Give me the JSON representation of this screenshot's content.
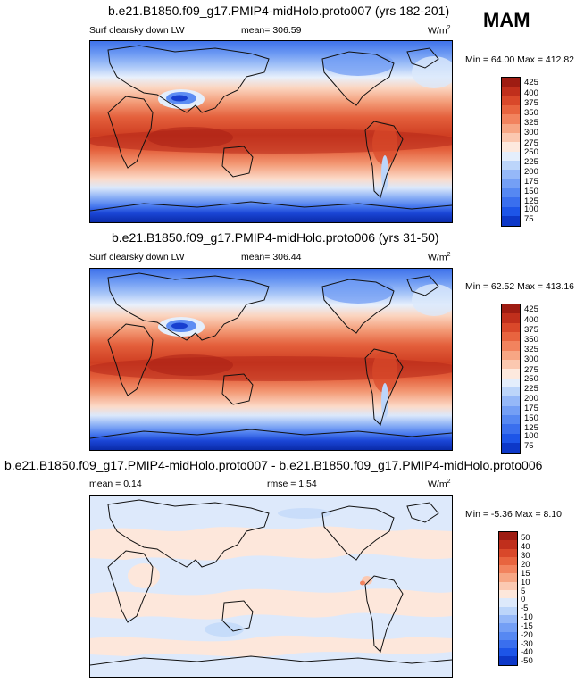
{
  "season": "MAM",
  "colors": {
    "abs": [
      "#08208e",
      "#0d38c8",
      "#1d55e8",
      "#3a6fee",
      "#5688f2",
      "#749ff5",
      "#95b8f8",
      "#bcd5fa",
      "#e4eefc",
      "#fde9de",
      "#fbc8b0",
      "#f7a684",
      "#f2835e",
      "#e8643f",
      "#d9482a",
      "#c02f1c",
      "#9e1c12"
    ],
    "diff": [
      "#08208e",
      "#0d38c8",
      "#1d55e8",
      "#3a6fee",
      "#5688f2",
      "#749ff5",
      "#95b8f8",
      "#bcd5fa",
      "#dde9fb",
      "#fde7db",
      "#fbc9b2",
      "#f7a684",
      "#f2835e",
      "#e8643f",
      "#d9482a",
      "#c02f1c",
      "#9e1c12"
    ]
  },
  "chart_data": [
    {
      "type": "heatmap",
      "title": "b.e21.B1850.f09_g17.PMIP4-midHolo.proto007 (yrs 182-201)",
      "left_label": "Surf clearsky down LW",
      "mean_label": "mean= 306.59",
      "units": "W/m",
      "units_exp": "2",
      "minmax": "Min = 64.00 Max = 412.82",
      "colorbar_levels": [
        "75",
        "100",
        "125",
        "150",
        "175",
        "200",
        "225",
        "250",
        "275",
        "300",
        "325",
        "350",
        "375",
        "400",
        "425"
      ]
    },
    {
      "type": "heatmap",
      "title": "b.e21.B1850.f09_g17.PMIP4-midHolo.proto006 (yrs 31-50)",
      "left_label": "Surf clearsky down LW",
      "mean_label": "mean= 306.44",
      "units": "W/m",
      "units_exp": "2",
      "minmax": "Min = 62.52 Max = 413.16",
      "colorbar_levels": [
        "75",
        "100",
        "125",
        "150",
        "175",
        "200",
        "225",
        "250",
        "275",
        "300",
        "325",
        "350",
        "375",
        "400",
        "425"
      ]
    },
    {
      "type": "heatmap",
      "title": "b.e21.B1850.f09_g17.PMIP4-midHolo.proto007 - b.e21.B1850.f09_g17.PMIP4-midHolo.proto006",
      "mean_label": "mean =   0.14",
      "rmse_label": "rmse =   1.54",
      "units": "W/m",
      "units_exp": "2",
      "minmax": "Min = -5.36 Max =  8.10",
      "colorbar_levels": [
        "-50",
        "-40",
        "-30",
        "-20",
        "-15",
        "-10",
        "-5",
        "0",
        "5",
        "10",
        "15",
        "20",
        "30",
        "40",
        "50"
      ]
    }
  ]
}
